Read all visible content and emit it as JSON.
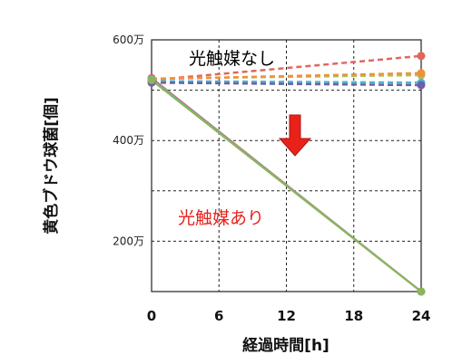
{
  "chart_data": {
    "type": "line",
    "xlabel": "経過時間[h]",
    "ylabel": "黄色ブドウ球菌[個]",
    "x": [
      0,
      24
    ],
    "xticks": [
      "0",
      "6",
      "12",
      "18",
      "24"
    ],
    "xlim": [
      0,
      24
    ],
    "ylim": [
      1000000,
      6000000
    ],
    "yticks": [
      {
        "value": 2000000,
        "label": "200万"
      },
      {
        "value": 4000000,
        "label": "400万"
      },
      {
        "value": 6000000,
        "label": "600万"
      }
    ],
    "grid": true,
    "series": [
      {
        "group": "no-photocatalyst",
        "color": "#e06660",
        "dash": true,
        "values": [
          5200000,
          5680000
        ]
      },
      {
        "group": "no-photocatalyst",
        "color": "#a9c25a",
        "dash": true,
        "values": [
          5230000,
          5300000
        ]
      },
      {
        "group": "no-photocatalyst",
        "color": "#4fb3d1",
        "dash": true,
        "values": [
          5180000,
          5150000
        ]
      },
      {
        "group": "no-photocatalyst",
        "color": "#6f5fa8",
        "dash": true,
        "values": [
          5150000,
          5100000
        ]
      },
      {
        "group": "no-photocatalyst",
        "color": "#f0913a",
        "dash": true,
        "values": [
          5220000,
          5340000
        ]
      },
      {
        "group": "photocatalyst",
        "color": "#d9604c",
        "dash": false,
        "values": [
          5240000,
          1000000
        ]
      },
      {
        "group": "photocatalyst",
        "color": "#5ab4d6",
        "dash": false,
        "values": [
          5220000,
          1000000
        ]
      },
      {
        "group": "photocatalyst",
        "color": "#8db45a",
        "dash": false,
        "values": [
          5200000,
          1000000
        ]
      }
    ],
    "annotations": [
      {
        "text": "光触媒なし",
        "color": "#111111"
      },
      {
        "text": "光触媒あり",
        "color": "#e8221b"
      }
    ],
    "arrow_color": "#e8221b"
  }
}
